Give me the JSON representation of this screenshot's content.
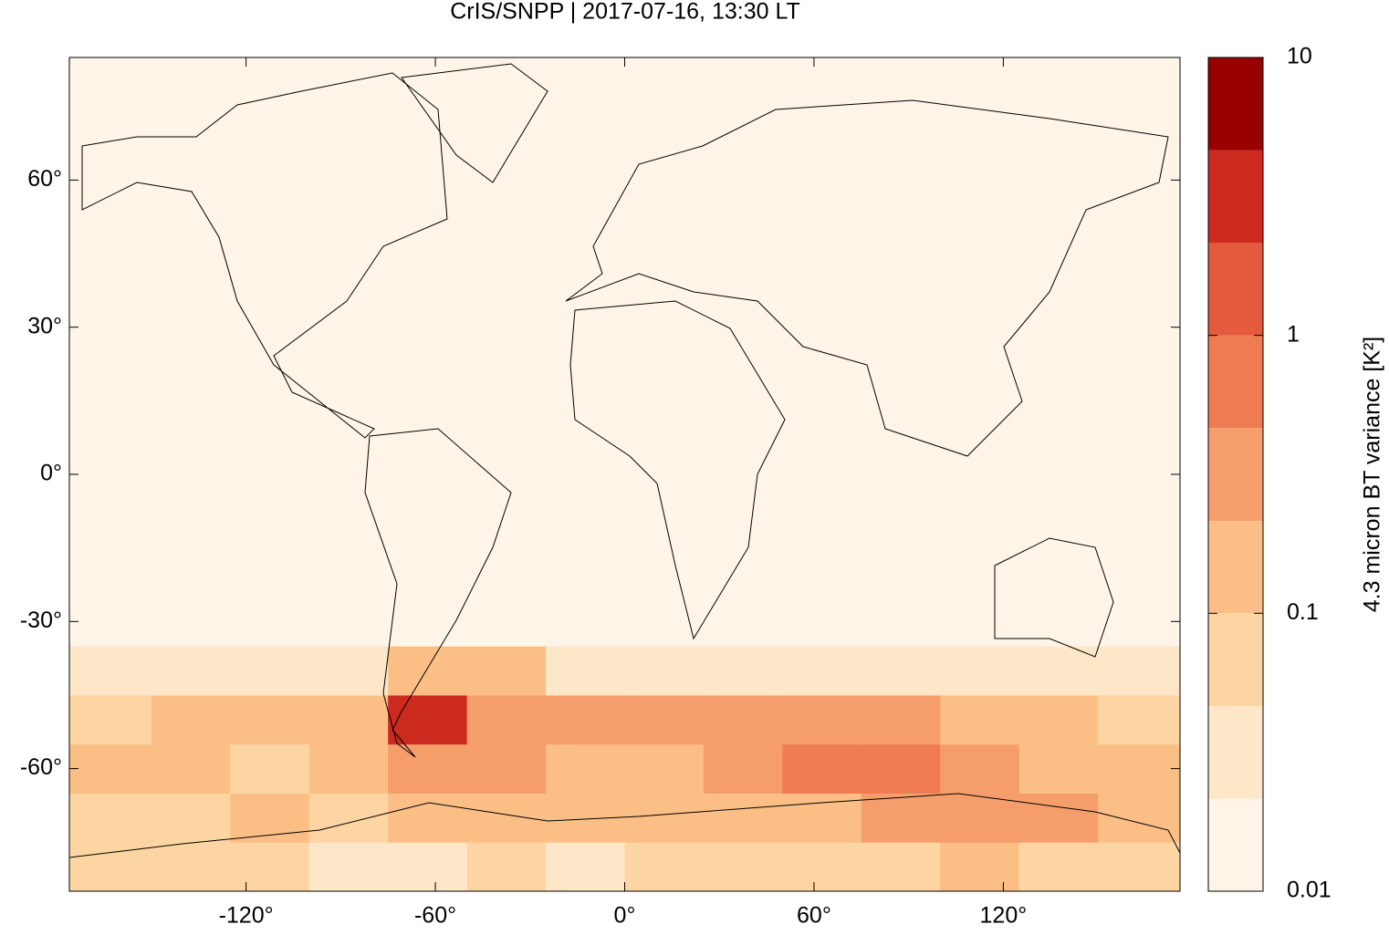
{
  "chart_data": {
    "type": "heatmap",
    "title": "CrIS/SNPP | 2017-07-16, 13:30 LT",
    "xlim": [
      -176,
      176
    ],
    "ylim": [
      -85,
      85
    ],
    "xticks": [
      {
        "value": -120,
        "label": "-120°"
      },
      {
        "value": -60,
        "label": "-60°"
      },
      {
        "value": 0,
        "label": "0°"
      },
      {
        "value": 60,
        "label": "60°"
      },
      {
        "value": 120,
        "label": "120°"
      }
    ],
    "yticks": [
      {
        "value": -60,
        "label": "-60°"
      },
      {
        "value": -30,
        "label": "-30°"
      },
      {
        "value": 0,
        "label": "0°"
      },
      {
        "value": 30,
        "label": "30°"
      },
      {
        "value": 60,
        "label": "60°"
      }
    ],
    "x": [
      -176,
      -150,
      -125,
      -100,
      -75,
      -50,
      -25,
      0,
      25,
      50,
      75,
      100,
      125,
      150,
      176
    ],
    "y": [
      -85,
      -75,
      -65,
      -55,
      -45,
      -35,
      85
    ],
    "z": [
      [
        0.05,
        0.06,
        0.05,
        0.04,
        0.04,
        0.05,
        0.04,
        0.05,
        0.05,
        0.06,
        0.08,
        0.15,
        0.08,
        0.06
      ],
      [
        0.06,
        0.08,
        0.1,
        0.08,
        0.1,
        0.15,
        0.12,
        0.1,
        0.15,
        0.2,
        0.3,
        0.4,
        0.4,
        0.2
      ],
      [
        0.15,
        0.1,
        0.08,
        0.15,
        0.4,
        0.3,
        0.2,
        0.2,
        0.3,
        0.5,
        0.6,
        0.4,
        0.2,
        0.1
      ],
      [
        0.08,
        0.1,
        0.1,
        0.15,
        3,
        0.3,
        0.3,
        0.4,
        0.3,
        0.4,
        0.3,
        0.2,
        0.1,
        0.06
      ],
      [
        0.03,
        0.03,
        0.03,
        0.04,
        0.2,
        0.1,
        0.04,
        0.03,
        0.03,
        0.03,
        0.03,
        0.03,
        0.03,
        0.03
      ],
      [
        0.015,
        0.015,
        0.015,
        0.015,
        0.015,
        0.015,
        0.015,
        0.015,
        0.015,
        0.015,
        0.015,
        0.015,
        0.015,
        0.015
      ]
    ],
    "colorbar": {
      "label": "4.3 micron BT variance [K²]",
      "log": true,
      "lim": [
        0.01,
        10
      ],
      "ticks": [
        0.01,
        0.1,
        1,
        10
      ],
      "levels": [
        0.01,
        0.0215,
        0.0464,
        0.1,
        0.215,
        0.464,
        1,
        2.15,
        4.64,
        10
      ],
      "colors": [
        "#fef5e8",
        "#fde7c8",
        "#fdd5a3",
        "#fbbf86",
        "#f59e6c",
        "#ef7b53",
        "#e35a3d",
        "#cc2a1e",
        "#990000"
      ]
    }
  }
}
